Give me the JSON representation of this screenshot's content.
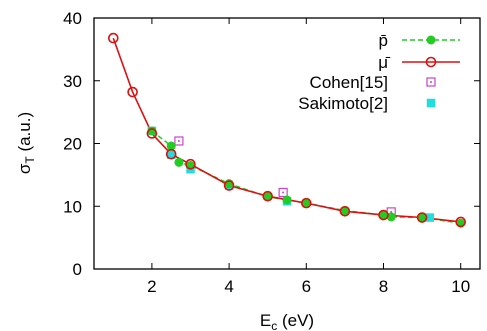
{
  "chart_data": {
    "type": "line",
    "xlabel": "E",
    "xlabel_sub": "c",
    "xlabel_units": " (eV)",
    "ylabel": "σ",
    "ylabel_sub": "T",
    "ylabel_units": " (a.u.)",
    "xlim": [
      0.5,
      10.5
    ],
    "ylim": [
      0,
      40
    ],
    "xticks": [
      2,
      4,
      6,
      8,
      10
    ],
    "yticks": [
      0,
      10,
      20,
      30,
      40
    ],
    "legend_position": "top-right",
    "series": [
      {
        "name": "p̄",
        "style": "dashed line with filled circles",
        "color": "#22cc22",
        "x": [
          2.0,
          2.5,
          2.7,
          3.0,
          4.0,
          5.0,
          5.5,
          6.0,
          7.0,
          8.0,
          8.2,
          9.0,
          10.0
        ],
        "y": [
          22.0,
          19.6,
          17.0,
          16.5,
          13.6,
          11.5,
          11.0,
          10.5,
          9.3,
          8.6,
          8.3,
          8.2,
          7.3
        ]
      },
      {
        "name": "μ̄",
        "style": "solid line with open circles",
        "color": "#dd1111",
        "x": [
          1.0,
          1.5,
          2.0,
          2.5,
          3.0,
          4.0,
          5.0,
          6.0,
          7.0,
          8.0,
          9.0,
          10.0
        ],
        "y": [
          36.8,
          28.2,
          21.6,
          18.3,
          16.7,
          13.3,
          11.6,
          10.5,
          9.2,
          8.6,
          8.2,
          7.5
        ]
      },
      {
        "name": "Cohen[15]",
        "style": "open squares with dot",
        "color": "#cc44cc",
        "x": [
          2.7,
          5.4,
          8.2
        ],
        "y": [
          20.4,
          12.2,
          9.1
        ]
      },
      {
        "name": "Sakimoto[2]",
        "style": "filled squares",
        "color": "#22dddd",
        "x": [
          2.0,
          2.5,
          3.0,
          4.0,
          5.5,
          9.2
        ],
        "y": [
          22.0,
          18.2,
          15.9,
          13.3,
          10.8,
          8.2
        ]
      }
    ]
  }
}
